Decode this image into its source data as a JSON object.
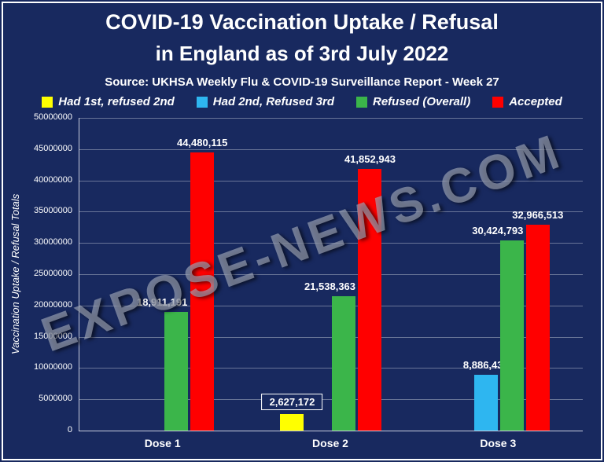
{
  "header": {
    "title_line1": "COVID-19 Vaccination Uptake / Refusal",
    "title_line2": "in England as of 3rd July 2022",
    "source": "Source: UKHSA Weekly Flu & COVID-19 Surveillance Report - Week 27"
  },
  "watermark": "EXPOSE-NEWS.COM",
  "colors": {
    "background": "#18295f",
    "text": "#ffffff",
    "grid": "#cdd2de",
    "yellow": "#ffff00",
    "cyan": "#2eb6f0",
    "green": "#3bb54a",
    "red": "#ff0000"
  },
  "chart_data": {
    "type": "bar",
    "title": "COVID-19 Vaccination Uptake / Refusal in England as of 3rd July 2022",
    "subtitle": "Source: UKHSA Weekly Flu & COVID-19 Surveillance Report - Week 27",
    "categories": [
      "Dose 1",
      "Dose 2",
      "Dose 3"
    ],
    "series": [
      {
        "name": "Had 1st, refused 2nd",
        "color": "#ffff00",
        "values": [
          null,
          2627172,
          null
        ],
        "labels": [
          null,
          "2,627,172",
          null
        ],
        "boxed_labels": [
          false,
          true,
          false
        ]
      },
      {
        "name": "Had 2nd, Refused 3rd",
        "color": "#2eb6f0",
        "values": [
          null,
          null,
          8886430
        ],
        "labels": [
          null,
          null,
          "8,886,430"
        ]
      },
      {
        "name": "Refused (Overall)",
        "color": "#3bb54a",
        "values": [
          18911191,
          21538363,
          30424793
        ],
        "labels": [
          "18,911,191",
          "21,538,363",
          "30,424,793"
        ]
      },
      {
        "name": "Accepted",
        "color": "#ff0000",
        "values": [
          44480115,
          41852943,
          32966513
        ],
        "labels": [
          "44,480,115",
          "41,852,943",
          "32,966,513"
        ]
      }
    ],
    "xlabel": "",
    "ylabel": "Vaccination Uptake / Refusal Totals",
    "ylim": [
      0,
      50000000
    ],
    "ytick_step": 5000000,
    "yticks": [
      "0",
      "5000000",
      "10000000",
      "15000000",
      "20000000",
      "25000000",
      "30000000",
      "35000000",
      "40000000",
      "45000000",
      "50000000"
    ],
    "grid": true,
    "legend_position": "top"
  }
}
